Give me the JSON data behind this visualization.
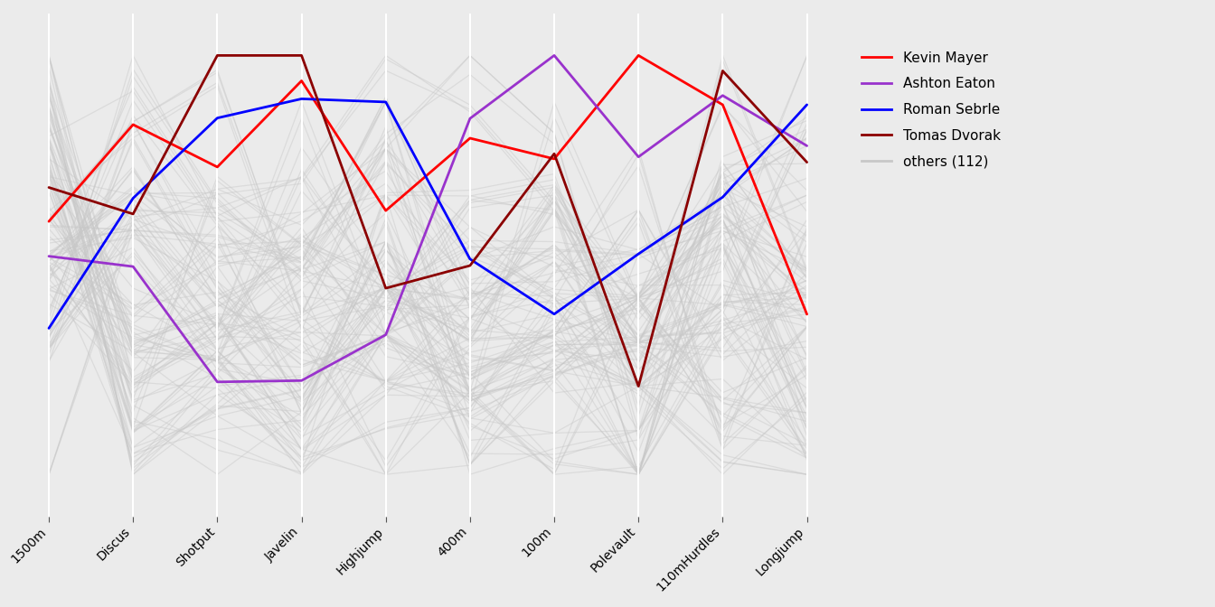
{
  "events": [
    "1500m",
    "Discus",
    "Shotput",
    "Javelin",
    "Highjump",
    "400m",
    "100m",
    "Polevault",
    "110mHurdles",
    "Longjump"
  ],
  "invert": [
    true,
    false,
    false,
    false,
    false,
    true,
    true,
    false,
    true,
    false
  ],
  "background_color": "#EBEBEB",
  "grid_color": "#FFFFFF",
  "others_color": "#C8C8C8",
  "others_alpha": 0.45,
  "others_lw": 0.9,
  "featured_colors": [
    "#FF0000",
    "#9932CC",
    "#0000FF",
    "#8B0000"
  ],
  "featured_labels": [
    "Kevin Mayer",
    "Ashton Eaton",
    "Roman Sebrle",
    "Tomas Dvorak"
  ],
  "featured_lw": 2.0,
  "legend_fontsize": 11,
  "tick_fontsize": 10,
  "others_count": 112,
  "n_ygrid": 5,
  "ylim": [
    -0.1,
    1.1
  ],
  "raw_data": {
    "SEBRLE": [
      10.85,
      7.84,
      16.36,
      2.12,
      48.36,
      14.05,
      48.72,
      5.0,
      70.52,
      280.01
    ],
    "CLAY": [
      10.44,
      7.96,
      14.81,
      1.97,
      49.37,
      14.29,
      48.1,
      4.9,
      69.71,
      282.0
    ],
    "KARPOV": [
      10.5,
      7.81,
      15.93,
      2.09,
      46.81,
      13.97,
      43.75,
      4.6,
      64.55,
      263.7
    ],
    "BERNARD": [
      10.6,
      7.47,
      15.73,
      2.0,
      47.91,
      14.16,
      51.73,
      4.9,
      63.45,
      278.95
    ],
    "YURKOV": [
      10.86,
      7.76,
      15.3,
      2.09,
      48.61,
      14.05,
      48.8,
      4.5,
      65.82,
      264.05
    ],
    "WARNERS": [
      10.62,
      7.74,
      14.48,
      1.97,
      47.97,
      14.01,
      43.73,
      4.9,
      55.39,
      256.64
    ],
    "ZSIVOCZKY": [
      10.91,
      7.14,
      15.31,
      2.12,
      49.4,
      14.95,
      45.62,
      4.7,
      63.45,
      269.54
    ],
    "MCMULLEN": [
      10.83,
      7.31,
      13.92,
      1.94,
      48.6,
      14.2,
      43.6,
      4.6,
      55.2,
      258.24
    ],
    "MARTINEAU": [
      10.98,
      7.3,
      15.48,
      2.03,
      49.92,
      14.81,
      45.83,
      4.9,
      57.67,
      268.54
    ],
    "HERNU": [
      10.73,
      7.56,
      14.52,
      1.97,
      48.65,
      14.54,
      42.92,
      4.8,
      57.51,
      251.28
    ],
    "BARRAS": [
      11.14,
      6.99,
      14.91,
      1.94,
      49.41,
      14.5,
      45.33,
      4.5,
      56.14,
      257.71
    ],
    "NOOL": [
      10.8,
      7.53,
      14.26,
      1.88,
      48.81,
      14.8,
      42.05,
      5.2,
      61.26,
      255.1
    ],
    "BOURGUIGNON": [
      11.08,
      7.22,
      13.74,
      2.03,
      49.74,
      14.44,
      43.29,
      4.6,
      57.67,
      260.0
    ],
    "SEBRLE2": [
      10.83,
      7.58,
      15.02,
      1.97,
      48.37,
      13.75,
      48.72,
      4.9,
      59.6,
      272.01
    ],
    "CLAY2": [
      10.62,
      7.78,
      15.13,
      2.03,
      48.82,
      14.43,
      50.21,
      4.7,
      58.19,
      282.0
    ],
    "KARPOV2": [
      10.65,
      7.42,
      15.7,
      2.15,
      47.24,
      13.94,
      48.26,
      4.5,
      67.31,
      295.4
    ],
    "MACEY": [
      10.97,
      6.98,
      16.62,
      2.09,
      49.41,
      14.76,
      50.33,
      4.8,
      61.68,
      268.49
    ],
    "MARTINEAU2": [
      10.96,
      7.3,
      14.86,
      2.0,
      49.1,
      14.71,
      44.86,
      4.9,
      58.14,
      267.74
    ],
    "HERNU2": [
      10.88,
      7.2,
      14.8,
      2.0,
      48.98,
      14.85,
      44.29,
      5.1,
      61.78,
      251.43
    ],
    "KLESZCZ": [
      10.81,
      7.01,
      14.57,
      1.91,
      49.49,
      14.26,
      45.31,
      4.9,
      55.68,
      256.6
    ],
    "BARRAS2": [
      11.13,
      7.36,
      14.65,
      2.0,
      49.63,
      14.32,
      47.02,
      4.6,
      56.56,
      263.74
    ],
    "NOOL2": [
      10.88,
      7.43,
      14.33,
      1.88,
      49.37,
      14.56,
      41.89,
      5.1,
      56.15,
      253.63
    ],
    "BOURGUIGNON2": [
      11.11,
      6.98,
      14.17,
      2.06,
      50.0,
      14.33,
      44.91,
      4.6,
      55.55,
      255.67
    ],
    "DREWS": [
      11.16,
      7.09,
      15.43,
      2.0,
      49.38,
      14.72,
      44.79,
      4.9,
      64.67,
      272.31
    ],
    "SCHWARZL": [
      10.89,
      7.4,
      14.99,
      1.94,
      49.07,
      14.51,
      45.09,
      4.7,
      60.56,
      263.26
    ],
    "AVERYANOV": [
      10.96,
      6.94,
      14.85,
      2.0,
      48.67,
      14.91,
      44.22,
      4.7,
      60.93,
      262.0
    ],
    "OJANIEMI": [
      10.92,
      7.33,
      14.39,
      1.97,
      49.36,
      14.46,
      42.56,
      4.8,
      59.18,
      260.5
    ],
    "SATEGNA": [
      11.08,
      7.09,
      14.07,
      2.0,
      49.57,
      14.7,
      42.41,
      4.7,
      57.33,
      273.25
    ],
    "EATON": [
      10.35,
      7.74,
      14.42,
      1.97,
      47.29,
      13.72,
      47.03,
      5.22,
      58.96,
      272.42
    ],
    "MAYER": [
      10.55,
      7.33,
      16.0,
      2.05,
      47.44,
      13.75,
      50.54,
      5.45,
      71.26,
      268.76
    ],
    "FREIMUTH": [
      10.71,
      7.43,
      15.81,
      2.09,
      48.22,
      14.08,
      48.84,
      5.0,
      63.49,
      273.56
    ],
    "SUAREZ": [
      10.77,
      7.42,
      15.34,
      2.06,
      48.63,
      14.06,
      48.97,
      5.0,
      64.45,
      272.89
    ],
    "WARHOLM": [
      10.59,
      7.44,
      14.65,
      2.06,
      47.88,
      13.59,
      42.98,
      4.7,
      56.99,
      262.68
    ],
    "KAZMIREK": [
      10.74,
      7.44,
      15.64,
      1.97,
      48.26,
      14.11,
      52.25,
      4.9,
      67.32,
      281.24
    ],
    "HARD": [
      10.85,
      7.23,
      14.84,
      2.06,
      48.92,
      14.08,
      45.82,
      5.0,
      63.62,
      276.01
    ],
    "BARRAS3": [
      10.91,
      7.18,
      14.65,
      2.03,
      49.22,
      14.03,
      47.92,
      4.8,
      63.1,
      269.15
    ],
    "POGORELOV": [
      10.89,
      7.31,
      15.16,
      1.94,
      49.15,
      14.13,
      47.74,
      4.9,
      60.13,
      271.88
    ],
    "KULA": [
      10.72,
      7.38,
      14.76,
      2.0,
      48.66,
      14.45,
      44.13,
      4.8,
      64.91,
      273.52
    ],
    "ZMELIK": [
      10.63,
      7.62,
      14.57,
      2.0,
      48.98,
      14.17,
      45.51,
      4.8,
      67.35,
      274.16
    ],
    "PAHAPILL": [
      11.15,
      6.99,
      14.61,
      1.97,
      49.61,
      14.42,
      42.92,
      5.0,
      55.11,
      263.8
    ],
    "SCHWARZL2": [
      10.86,
      7.25,
      14.58,
      2.0,
      49.25,
      14.55,
      45.1,
      4.8,
      61.4,
      258.68
    ],
    "RADLER": [
      10.89,
      7.1,
      14.97,
      1.97,
      49.28,
      14.12,
      48.35,
      4.9,
      64.51,
      282.1
    ],
    "RAMOS": [
      10.97,
      7.07,
      15.59,
      1.94,
      49.52,
      14.21,
      51.14,
      4.5,
      61.2,
      278.34
    ],
    "POGORELOV2": [
      10.75,
      7.11,
      15.02,
      1.94,
      48.81,
      14.01,
      49.5,
      4.7,
      64.37,
      272.57
    ],
    "SIMON": [
      10.84,
      7.17,
      15.08,
      1.88,
      49.93,
      14.21,
      46.08,
      4.7,
      60.72,
      268.25
    ],
    "KARPOV3": [
      10.6,
      7.52,
      15.5,
      2.12,
      48.65,
      13.97,
      47.93,
      4.8,
      63.92,
      271.04
    ],
    "MULLER": [
      10.83,
      7.15,
      14.61,
      1.97,
      49.87,
      14.46,
      44.92,
      4.5,
      58.09,
      277.44
    ],
    "KRAHENBUHL": [
      10.81,
      7.37,
      14.22,
      2.0,
      48.26,
      14.39,
      42.31,
      4.8,
      58.56,
      263.9
    ],
    "JONES": [
      10.96,
      7.3,
      14.56,
      1.97,
      49.44,
      14.4,
      47.31,
      4.9,
      59.51,
      280.31
    ],
    "PARKHOMENKO": [
      10.74,
      7.38,
      15.6,
      2.06,
      48.52,
      14.58,
      51.37,
      5.1,
      65.87,
      259.78
    ],
    "VOSS": [
      10.94,
      6.98,
      14.51,
      2.03,
      49.67,
      14.64,
      47.5,
      4.7,
      63.52,
      275.89
    ],
    "DVORAK": [
      10.54,
      7.7,
      16.82,
      2.0,
      48.41,
      13.64,
      48.33,
      4.7,
      72.3,
      265.18
    ]
  },
  "featured_keys": [
    "MAYER",
    "EATON",
    "SEBRLE",
    "DVORAK"
  ],
  "raw_col_order_to_target": [
    9,
    6,
    2,
    8,
    3,
    4,
    0,
    7,
    5,
    1
  ]
}
